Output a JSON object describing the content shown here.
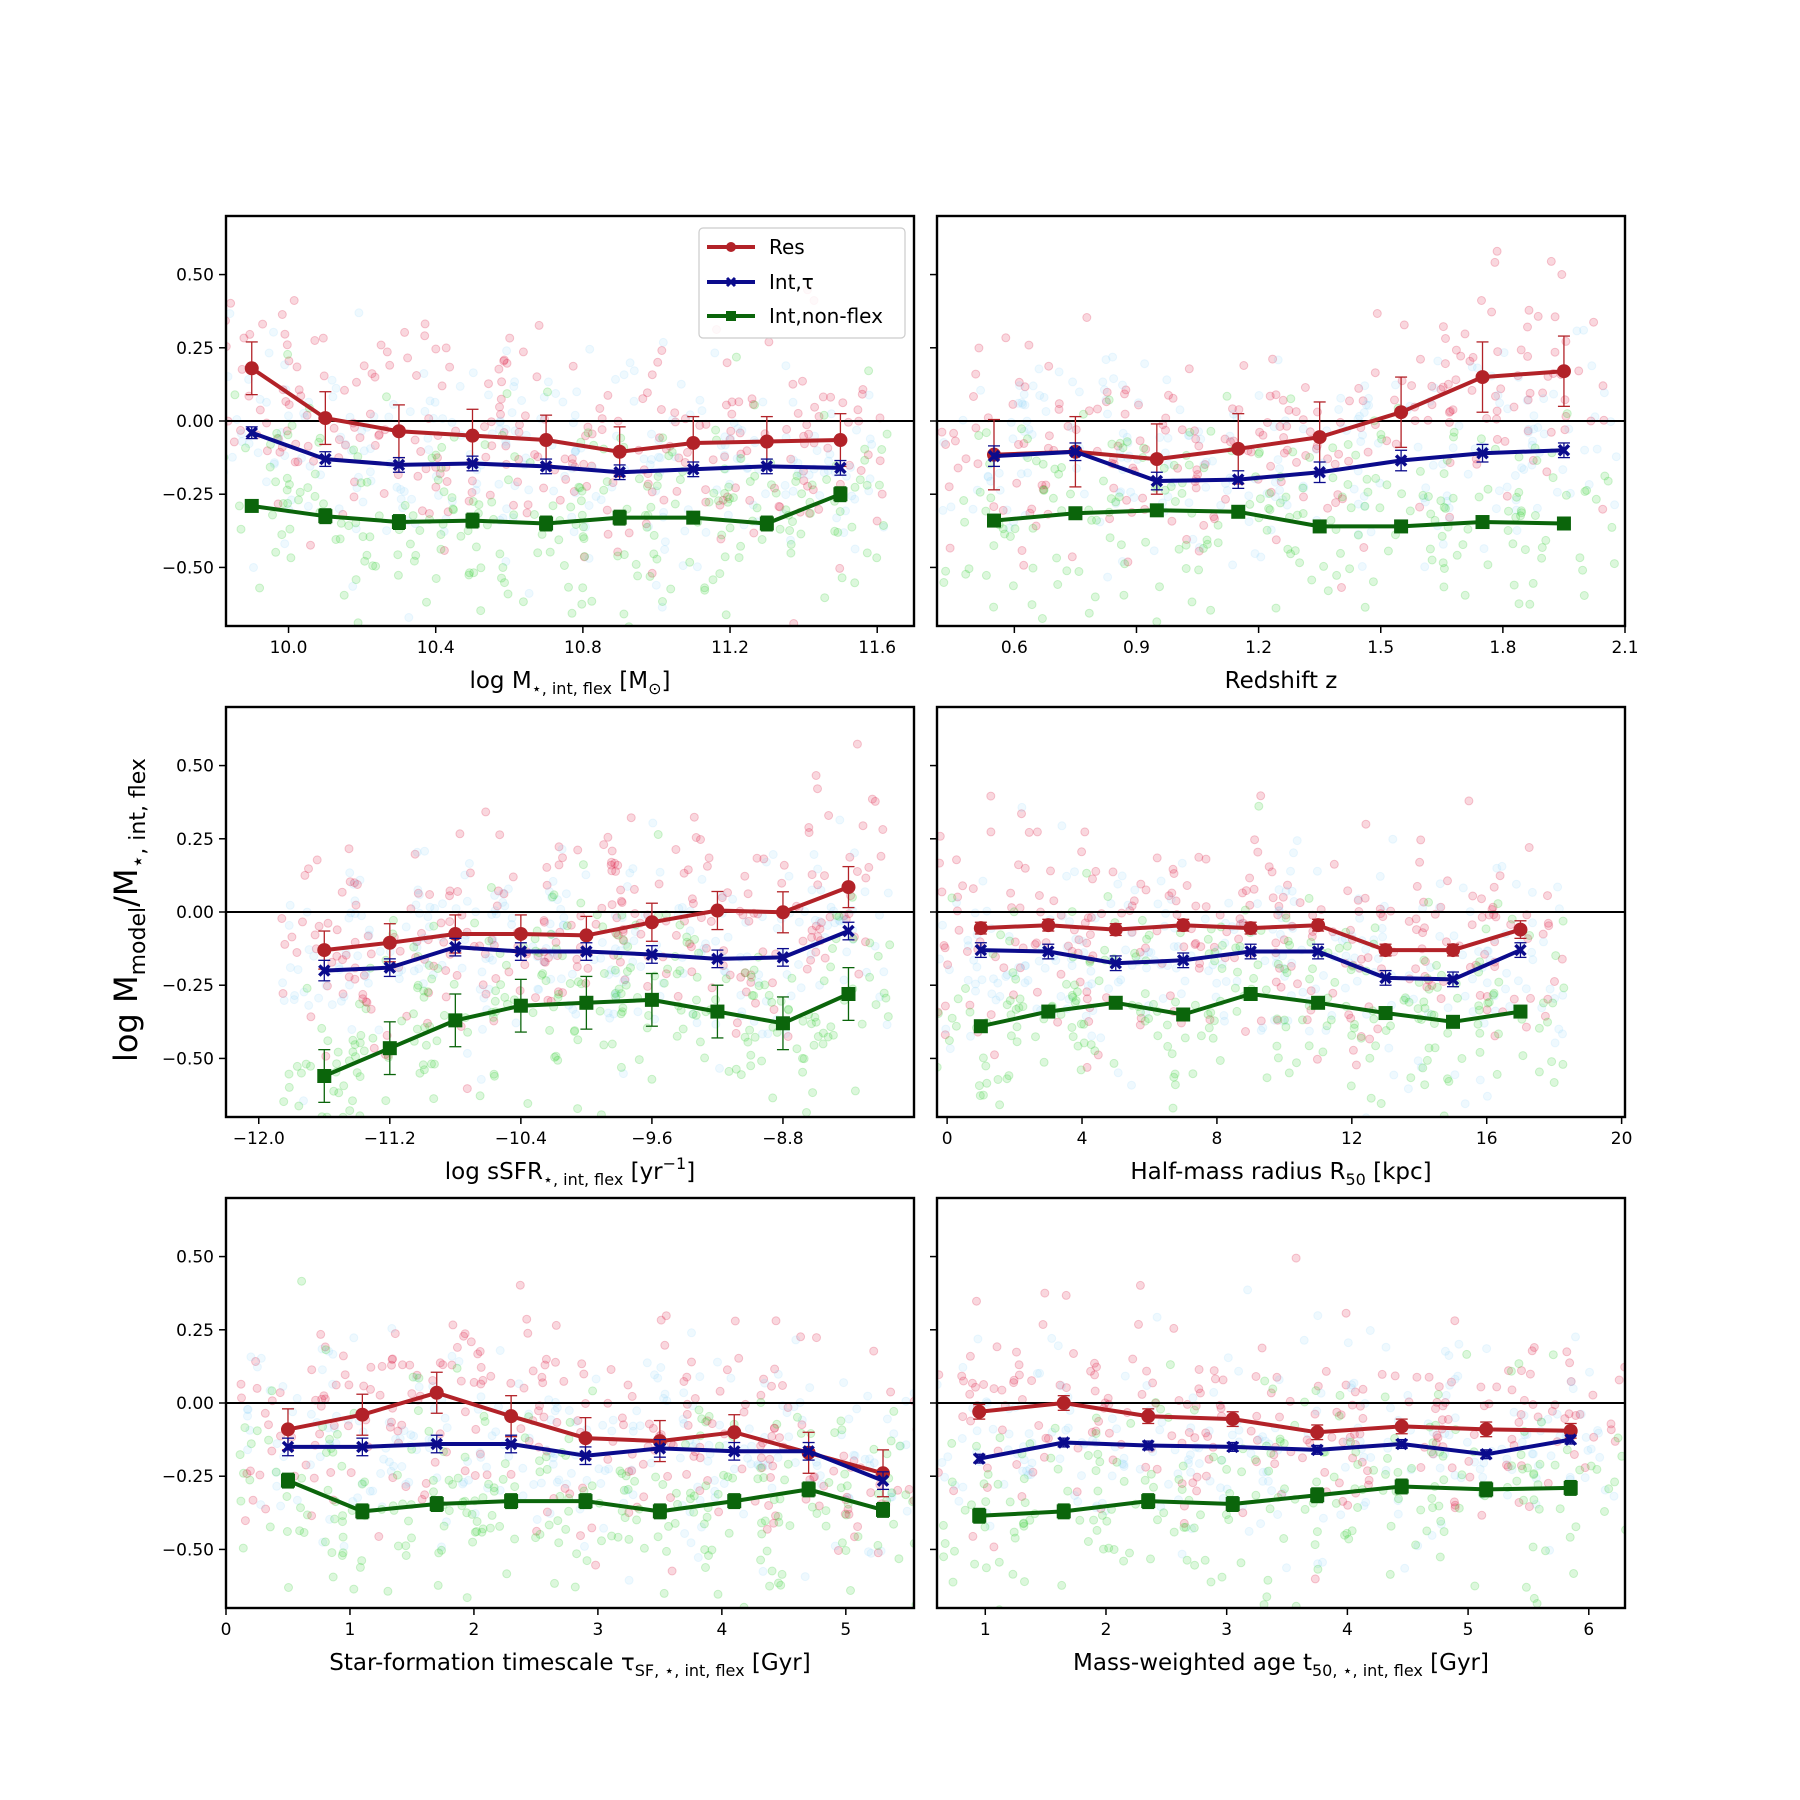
{
  "figure": {
    "ylabel": "log M_model/M_⋆, int, flex",
    "ylabel_parts": {
      "main": "log M",
      "sub1": "model",
      "mid": "/M",
      "sub2": "⋆, int, flex"
    }
  },
  "legend": {
    "entries": [
      {
        "label": "Res",
        "color": "#b22228",
        "marker": "circle"
      },
      {
        "label": "Int,τ",
        "color": "#0b0b8c",
        "marker": "x"
      },
      {
        "label": "Int,non-flex",
        "color": "#0b650b",
        "marker": "square"
      }
    ]
  },
  "colors": {
    "res": "#b22228",
    "int_tau": "#0b0b8c",
    "int_nonflex": "#0b650b",
    "scatter_res": "#dc143c",
    "scatter_tau": "#87cefa",
    "scatter_nonflex": "#32cd32"
  },
  "chart_data": [
    {
      "type": "line",
      "panel": "top-left",
      "xlabel": "log M⋆, int, flex [M⊙]",
      "xlabel_parts": {
        "main": "log M",
        "sub": "⋆, int, flex",
        "rest": " [M",
        "sub2": "⊙",
        "end": "]"
      },
      "ylabel": "",
      "xlim": [
        9.83,
        11.7
      ],
      "ylim": [
        -0.7,
        0.7
      ],
      "xticks": [
        10.0,
        10.4,
        10.8,
        11.2,
        11.6
      ],
      "xtick_labels": [
        "10.0",
        "10.4",
        "10.8",
        "11.2",
        "11.6"
      ],
      "yticks": [
        0.5,
        0.25,
        0.0,
        -0.25,
        -0.5
      ],
      "ytick_labels": [
        "0.50",
        "0.25",
        "0.00",
        "−0.25",
        "−0.50"
      ],
      "scatter_spread": 0.18,
      "series": [
        {
          "name": "Res",
          "x": [
            9.9,
            10.1,
            10.3,
            10.5,
            10.7,
            10.9,
            11.1,
            11.3,
            11.5
          ],
          "y": [
            0.18,
            0.01,
            -0.035,
            -0.05,
            -0.065,
            -0.105,
            -0.075,
            -0.07,
            -0.065
          ],
          "err": [
            0.09,
            0.09,
            0.09,
            0.09,
            0.085,
            0.085,
            0.09,
            0.085,
            0.09
          ]
        },
        {
          "name": "Int,τ",
          "x": [
            9.9,
            10.1,
            10.3,
            10.5,
            10.7,
            10.9,
            11.1,
            11.3,
            11.5
          ],
          "y": [
            -0.04,
            -0.13,
            -0.15,
            -0.145,
            -0.155,
            -0.175,
            -0.165,
            -0.155,
            -0.16
          ],
          "err": [
            0.02,
            0.025,
            0.025,
            0.025,
            0.025,
            0.025,
            0.025,
            0.025,
            0.025
          ]
        },
        {
          "name": "Int,non-flex",
          "x": [
            9.9,
            10.1,
            10.3,
            10.5,
            10.7,
            10.9,
            11.1,
            11.3,
            11.5
          ],
          "y": [
            -0.29,
            -0.325,
            -0.345,
            -0.34,
            -0.35,
            -0.33,
            -0.33,
            -0.35,
            -0.25
          ],
          "err": [
            0.02,
            0.025,
            0.025,
            0.025,
            0.025,
            0.025,
            0.02,
            0.025,
            0.025
          ]
        }
      ]
    },
    {
      "type": "line",
      "panel": "top-right",
      "xlabel": "Redshift z",
      "xlabel_parts": {
        "main": "Redshift z",
        "sub": "",
        "rest": "",
        "sub2": "",
        "end": ""
      },
      "ylabel": "",
      "xlim": [
        0.41,
        2.1
      ],
      "ylim": [
        -0.7,
        0.7
      ],
      "xticks": [
        0.6,
        0.9,
        1.2,
        1.5,
        1.8,
        2.1
      ],
      "xtick_labels": [
        "0.6",
        "0.9",
        "1.2",
        "1.5",
        "1.8",
        "2.1"
      ],
      "yticks": [
        0.5,
        0.25,
        0.0,
        -0.25,
        -0.5
      ],
      "ytick_labels": [],
      "scatter_spread": 0.18,
      "series": [
        {
          "name": "Res",
          "x": [
            0.55,
            0.75,
            0.95,
            1.15,
            1.35,
            1.55,
            1.75,
            1.95
          ],
          "y": [
            -0.115,
            -0.105,
            -0.13,
            -0.095,
            -0.055,
            0.03,
            0.15,
            0.17
          ],
          "err": [
            0.12,
            0.12,
            0.12,
            0.12,
            0.12,
            0.12,
            0.12,
            0.12
          ]
        },
        {
          "name": "Int,τ",
          "x": [
            0.55,
            0.75,
            0.95,
            1.15,
            1.35,
            1.55,
            1.75,
            1.95
          ],
          "y": [
            -0.12,
            -0.105,
            -0.205,
            -0.2,
            -0.175,
            -0.135,
            -0.11,
            -0.1
          ],
          "err": [
            0.035,
            0.03,
            0.03,
            0.03,
            0.035,
            0.035,
            0.03,
            0.025
          ]
        },
        {
          "name": "Int,non-flex",
          "x": [
            0.55,
            0.75,
            0.95,
            1.15,
            1.35,
            1.55,
            1.75,
            1.95
          ],
          "y": [
            -0.34,
            -0.315,
            -0.305,
            -0.31,
            -0.36,
            -0.36,
            -0.345,
            -0.35
          ],
          "err": [
            0.015,
            0.015,
            0.015,
            0.015,
            0.015,
            0.015,
            0.015,
            0.015
          ]
        }
      ]
    },
    {
      "type": "line",
      "panel": "middle-left",
      "xlabel": "log sSFR⋆, int, flex [yr−1]",
      "xlabel_parts": {
        "main": "log sSFR",
        "sub": "⋆, int, flex",
        "rest": " [yr",
        "sup": "−1",
        "end": "]"
      },
      "ylabel": "",
      "xlim": [
        -12.2,
        -8.0
      ],
      "ylim": [
        -0.7,
        0.7
      ],
      "xticks": [
        -12.0,
        -11.2,
        -10.4,
        -9.6,
        -8.8
      ],
      "xtick_labels": [
        "−12.0",
        "−11.2",
        "−10.4",
        "−9.6",
        "−8.8"
      ],
      "yticks": [
        0.5,
        0.25,
        0.0,
        -0.25,
        -0.5
      ],
      "ytick_labels": [
        "0.50",
        "0.25",
        "0.00",
        "−0.25",
        "−0.50"
      ],
      "scatter_spread": 0.18,
      "series": [
        {
          "name": "Res",
          "x": [
            -11.6,
            -11.2,
            -10.8,
            -10.4,
            -10.0,
            -9.6,
            -9.2,
            -8.8,
            -8.4
          ],
          "y": [
            -0.13,
            -0.105,
            -0.075,
            -0.075,
            -0.08,
            -0.035,
            0.005,
            -0.001,
            0.085
          ],
          "err": [
            0.065,
            0.065,
            0.065,
            0.065,
            0.065,
            0.065,
            0.065,
            0.07,
            0.07
          ]
        },
        {
          "name": "Int,τ",
          "x": [
            -11.6,
            -11.2,
            -10.8,
            -10.4,
            -10.0,
            -9.6,
            -9.2,
            -8.8,
            -8.4
          ],
          "y": [
            -0.2,
            -0.19,
            -0.12,
            -0.135,
            -0.135,
            -0.145,
            -0.16,
            -0.155,
            -0.065
          ],
          "err": [
            0.035,
            0.03,
            0.03,
            0.03,
            0.03,
            0.03,
            0.03,
            0.03,
            0.03
          ]
        },
        {
          "name": "Int,non-flex",
          "x": [
            -11.6,
            -11.2,
            -10.8,
            -10.4,
            -10.0,
            -9.6,
            -9.2,
            -8.8,
            -8.4
          ],
          "y": [
            -0.56,
            -0.465,
            -0.37,
            -0.32,
            -0.31,
            -0.3,
            -0.34,
            -0.38,
            -0.28
          ],
          "err": [
            0.09,
            0.09,
            0.09,
            0.09,
            0.09,
            0.09,
            0.09,
            0.09,
            0.09
          ]
        }
      ]
    },
    {
      "type": "line",
      "panel": "middle-right",
      "xlabel": "Half-mass radius R50 [kpc]",
      "xlabel_parts": {
        "main": "Half-mass radius R",
        "sub": "50",
        "rest": " [kpc]",
        "sub2": "",
        "end": ""
      },
      "ylabel": "",
      "xlim": [
        -0.3,
        20.1
      ],
      "ylim": [
        -0.7,
        0.7
      ],
      "xticks": [
        0,
        4,
        8,
        12,
        16,
        20
      ],
      "xtick_labels": [
        "0",
        "4",
        "8",
        "12",
        "16",
        "20"
      ],
      "yticks": [
        0.5,
        0.25,
        0.0,
        -0.25,
        -0.5
      ],
      "ytick_labels": [],
      "scatter_spread": 0.18,
      "series": [
        {
          "name": "Res",
          "x": [
            1,
            3,
            5,
            7,
            9,
            11,
            13,
            15,
            17
          ],
          "y": [
            -0.055,
            -0.045,
            -0.06,
            -0.045,
            -0.055,
            -0.045,
            -0.13,
            -0.13,
            -0.06
          ],
          "err": [
            0.02,
            0.02,
            0.02,
            0.02,
            0.02,
            0.02,
            0.02,
            0.02,
            0.03
          ]
        },
        {
          "name": "Int,τ",
          "x": [
            1,
            3,
            5,
            7,
            9,
            11,
            13,
            15,
            17
          ],
          "y": [
            -0.13,
            -0.135,
            -0.175,
            -0.165,
            -0.135,
            -0.135,
            -0.225,
            -0.23,
            -0.13
          ],
          "err": [
            0.025,
            0.025,
            0.025,
            0.025,
            0.025,
            0.025,
            0.025,
            0.025,
            0.025
          ]
        },
        {
          "name": "Int,non-flex",
          "x": [
            1,
            3,
            5,
            7,
            9,
            11,
            13,
            15,
            17
          ],
          "y": [
            -0.39,
            -0.34,
            -0.31,
            -0.35,
            -0.28,
            -0.31,
            -0.345,
            -0.375,
            -0.34
          ],
          "err": [
            0.02,
            0.02,
            0.02,
            0.02,
            0.02,
            0.02,
            0.02,
            0.02,
            0.02
          ]
        }
      ]
    },
    {
      "type": "line",
      "panel": "bottom-left",
      "xlabel": "Star-formation timescale τSF, ⋆, int, flex [Gyr]",
      "xlabel_parts": {
        "main": "Star-formation timescale τ",
        "sub": "SF, ⋆, int, flex",
        "rest": " [Gyr]",
        "sub2": "",
        "end": ""
      },
      "ylabel": "",
      "xlim": [
        0.0,
        5.55
      ],
      "ylim": [
        -0.7,
        0.7
      ],
      "xticks": [
        0,
        1,
        2,
        3,
        4,
        5
      ],
      "xtick_labels": [
        "0",
        "1",
        "2",
        "3",
        "4",
        "5"
      ],
      "yticks": [
        0.5,
        0.25,
        0.0,
        -0.25,
        -0.5
      ],
      "ytick_labels": [
        "0.50",
        "0.25",
        "0.00",
        "−0.25",
        "−0.50"
      ],
      "scatter_spread": 0.18,
      "series": [
        {
          "name": "Res",
          "x": [
            0.5,
            1.1,
            1.7,
            2.3,
            2.9,
            3.5,
            4.1,
            4.7,
            5.3
          ],
          "y": [
            -0.09,
            -0.04,
            0.035,
            -0.045,
            -0.12,
            -0.13,
            -0.1,
            -0.17,
            -0.24
          ],
          "err": [
            0.07,
            0.07,
            0.07,
            0.07,
            0.07,
            0.07,
            0.06,
            0.07,
            0.08
          ]
        },
        {
          "name": "Int,τ",
          "x": [
            0.5,
            1.1,
            1.7,
            2.3,
            2.9,
            3.5,
            4.1,
            4.7,
            5.3
          ],
          "y": [
            -0.15,
            -0.15,
            -0.14,
            -0.14,
            -0.18,
            -0.155,
            -0.165,
            -0.165,
            -0.265
          ],
          "err": [
            0.03,
            0.03,
            0.03,
            0.03,
            0.03,
            0.03,
            0.03,
            0.03,
            0.03
          ]
        },
        {
          "name": "Int,non-flex",
          "x": [
            0.5,
            1.1,
            1.7,
            2.3,
            2.9,
            3.5,
            4.1,
            4.7,
            5.3
          ],
          "y": [
            -0.265,
            -0.37,
            -0.345,
            -0.335,
            -0.335,
            -0.37,
            -0.335,
            -0.295,
            -0.365
          ],
          "err": [
            0.025,
            0.025,
            0.025,
            0.025,
            0.025,
            0.025,
            0.025,
            0.025,
            0.025
          ]
        }
      ]
    },
    {
      "type": "line",
      "panel": "bottom-right",
      "xlabel": "Mass-weighted age t50, ⋆, int, flex [Gyr]",
      "xlabel_parts": {
        "main": "Mass-weighted age t",
        "sub": "50, ⋆, int, flex",
        "rest": " [Gyr]",
        "sub2": "",
        "end": ""
      },
      "ylabel": "",
      "xlim": [
        0.6,
        6.3
      ],
      "ylim": [
        -0.7,
        0.7
      ],
      "xticks": [
        1,
        2,
        3,
        4,
        5,
        6
      ],
      "xtick_labels": [
        "1",
        "2",
        "3",
        "4",
        "5",
        "6"
      ],
      "yticks": [
        0.5,
        0.25,
        0.0,
        -0.25,
        -0.5
      ],
      "ytick_labels": [],
      "scatter_spread": 0.18,
      "series": [
        {
          "name": "Res",
          "x": [
            0.95,
            1.65,
            2.35,
            3.05,
            3.75,
            4.45,
            5.15,
            5.85
          ],
          "y": [
            -0.03,
            0.0,
            -0.045,
            -0.055,
            -0.1,
            -0.08,
            -0.09,
            -0.095
          ],
          "err": [
            0.025,
            0.025,
            0.025,
            0.025,
            0.025,
            0.025,
            0.025,
            0.025
          ]
        },
        {
          "name": "Int,τ",
          "x": [
            0.95,
            1.65,
            2.35,
            3.05,
            3.75,
            4.45,
            5.15,
            5.85
          ],
          "y": [
            -0.19,
            -0.135,
            -0.145,
            -0.15,
            -0.16,
            -0.14,
            -0.175,
            -0.125
          ],
          "err": [
            0.015,
            0.015,
            0.015,
            0.015,
            0.015,
            0.015,
            0.015,
            0.015
          ]
        },
        {
          "name": "Int,non-flex",
          "x": [
            0.95,
            1.65,
            2.35,
            3.05,
            3.75,
            4.45,
            5.15,
            5.85
          ],
          "y": [
            -0.385,
            -0.37,
            -0.335,
            -0.345,
            -0.315,
            -0.285,
            -0.295,
            -0.29
          ],
          "err": [
            0.025,
            0.025,
            0.025,
            0.025,
            0.025,
            0.025,
            0.025,
            0.025
          ]
        }
      ]
    }
  ]
}
